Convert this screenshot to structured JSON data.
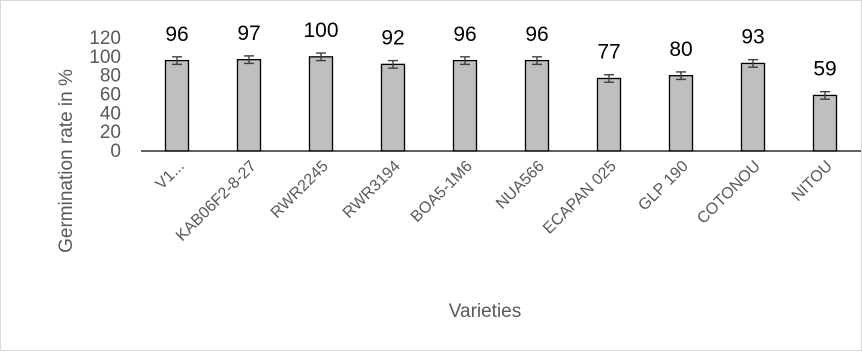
{
  "chart_data": {
    "type": "bar",
    "title": "",
    "xlabel": "Varieties",
    "ylabel": "Germination rate  in %",
    "ylim": [
      0,
      120
    ],
    "yticks": [
      0,
      20,
      40,
      60,
      80,
      100,
      120
    ],
    "grid": false,
    "legend": "none",
    "categories": [
      "V1...",
      "KAB06F2-8-27",
      "RWR2245",
      "RWR3194",
      "BOA5-1M6",
      "NUA566",
      "ECAPAN 025",
      "GLP 190",
      "COTONOU",
      "NITOU"
    ],
    "values": [
      96,
      97,
      100,
      92,
      96,
      96,
      77,
      80,
      93,
      59
    ],
    "data_labels": [
      "96",
      "97",
      "100",
      "92",
      "96",
      "96",
      "77",
      "80",
      "93",
      "59"
    ],
    "error_bars": [
      4,
      4,
      4,
      4,
      4,
      4,
      4,
      4,
      4,
      4
    ],
    "colors": {
      "bar_fill": "#bfbfbf",
      "bar_stroke": "#000000",
      "axis": "#000000",
      "error_bar": "#404040"
    }
  }
}
